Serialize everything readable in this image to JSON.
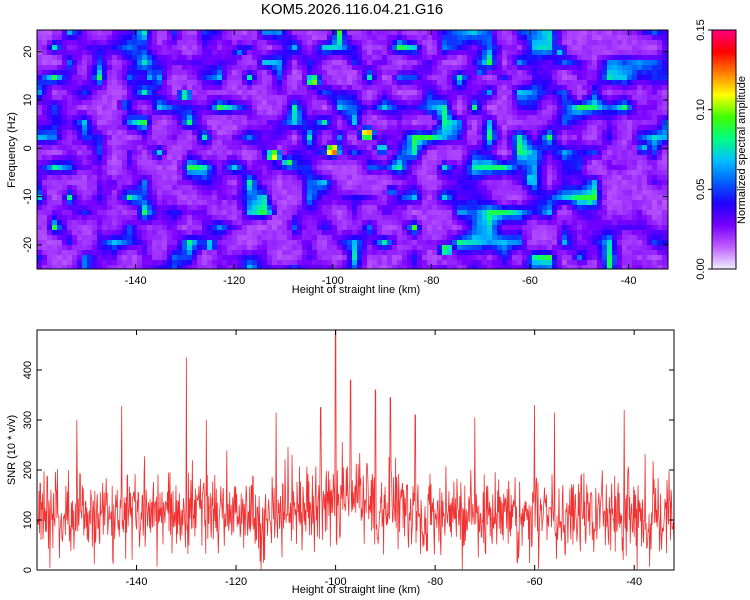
{
  "page": {
    "title": "KOM5.2026.116.04.21.G16"
  },
  "chart_data": [
    {
      "type": "heatmap",
      "name": "spectrogram",
      "xlabel": "Height of straight line (km)",
      "ylabel": "Frequency (Hz)",
      "xlim": [
        -160,
        -32
      ],
      "ylim": [
        -25,
        24.5
      ],
      "x_ticks": [
        -140,
        -120,
        -100,
        -80,
        -60,
        -40
      ],
      "y_ticks": [
        -20,
        -10,
        0,
        10,
        20
      ],
      "colorbar": {
        "label": "Normalized spectral amplitude",
        "range": [
          0.0,
          0.15
        ],
        "ticks": [
          0.0,
          0.05,
          0.1,
          0.15
        ],
        "tick_labels": [
          "0.00",
          "0.05",
          "0.10",
          "0.15"
        ],
        "colors": [
          "#f0f0ff",
          "#c060ff",
          "#7a00ff",
          "#2000ff",
          "#0060ff",
          "#00c0ff",
          "#00ff80",
          "#40ff00",
          "#ffff00",
          "#ff8000",
          "#ff0000",
          "#ff0080"
        ]
      },
      "background_level": 0.015,
      "peaks": [
        {
          "x": -100,
          "y": -0.5,
          "value": 0.14
        },
        {
          "x": -93,
          "y": 3,
          "value": 0.13
        },
        {
          "x": -112,
          "y": -1.5,
          "value": 0.12
        },
        {
          "x": -104,
          "y": 14,
          "value": 0.11
        },
        {
          "x": -130,
          "y": 11,
          "value": 0.09
        },
        {
          "x": -77,
          "y": -21,
          "value": 0.1
        },
        {
          "x": -125,
          "y": -20,
          "value": 0.08
        },
        {
          "x": -60,
          "y": -6.5,
          "value": 0.08
        },
        {
          "x": -90,
          "y": 0,
          "value": 0.08
        },
        {
          "x": -54,
          "y": 20,
          "value": 0.07
        },
        {
          "x": -48,
          "y": -11,
          "value": 0.08
        },
        {
          "x": -37,
          "y": 0,
          "value": 0.07
        },
        {
          "x": -137,
          "y": 15,
          "value": 0.07
        },
        {
          "x": -142,
          "y": 9,
          "value": 0.06
        },
        {
          "x": -109,
          "y": -3,
          "value": 0.09
        },
        {
          "x": -113,
          "y": -13,
          "value": 0.07
        },
        {
          "x": -119,
          "y": 20,
          "value": 0.06
        },
        {
          "x": -80,
          "y": 8,
          "value": 0.06
        },
        {
          "x": -70,
          "y": 16,
          "value": 0.06
        },
        {
          "x": -88,
          "y": -9,
          "value": 0.06
        }
      ]
    },
    {
      "type": "line",
      "name": "snr",
      "xlabel": "Height of straight line (km)",
      "ylabel": "SNR (10 * v/v)",
      "xlim": [
        -160,
        -32
      ],
      "ylim": [
        0,
        480
      ],
      "x_ticks": [
        -140,
        -120,
        -100,
        -80,
        -60,
        -40
      ],
      "y_ticks": [
        0,
        100,
        200,
        300,
        400
      ],
      "color": "#f03232",
      "baseline": 110,
      "noise_amplitude": 75,
      "n_points": 1280,
      "peaks": [
        {
          "x": -100,
          "value": 480
        },
        {
          "x": -130,
          "value": 425
        },
        {
          "x": -97,
          "value": 380
        },
        {
          "x": -92,
          "value": 360
        },
        {
          "x": -89,
          "value": 345
        },
        {
          "x": -143,
          "value": 328
        },
        {
          "x": -60,
          "value": 330
        },
        {
          "x": -56,
          "value": 315
        },
        {
          "x": -103,
          "value": 325
        },
        {
          "x": -112,
          "value": 315
        },
        {
          "x": -42,
          "value": 320
        },
        {
          "x": -84,
          "value": 310
        },
        {
          "x": -72,
          "value": 305
        },
        {
          "x": -126,
          "value": 300
        },
        {
          "x": -152,
          "value": 300
        }
      ]
    }
  ]
}
